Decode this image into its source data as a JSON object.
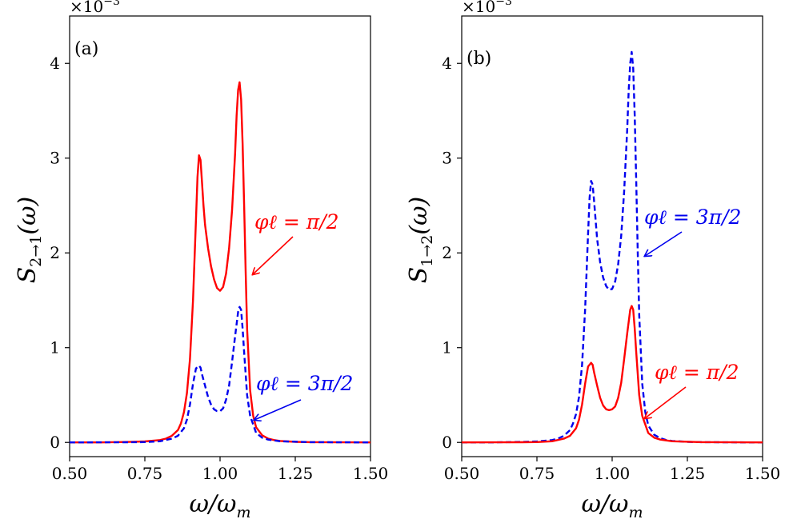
{
  "colors": {
    "red": "#ff0000",
    "blue": "#0000ee",
    "axis": "#000000"
  },
  "x_label": "ω/ω",
  "x_label_sub": "m",
  "chart_data": [
    {
      "type": "line",
      "panel": "(a)",
      "multiplier": "×10",
      "multiplier_exp": "−3",
      "ylabel": "S",
      "ylabel_sub": "2→1",
      "ylabel_tail": "(ω)",
      "xlim": [
        0.5,
        1.5
      ],
      "ylim": [
        -0.15,
        4.5
      ],
      "xticks": [
        0.5,
        0.75,
        1.0,
        1.25,
        1.5
      ],
      "xtick_labels": [
        "0.50",
        "0.75",
        "1.00",
        "1.25",
        "1.50"
      ],
      "yticks": [
        0,
        1,
        2,
        3,
        4
      ],
      "ytick_labels": [
        "0",
        "1",
        "2",
        "3",
        "4"
      ],
      "series": [
        {
          "name": "red-solid",
          "color": "#ff0000",
          "dash": "",
          "x": [
            0.5,
            0.6,
            0.7,
            0.75,
            0.8,
            0.82,
            0.84,
            0.86,
            0.87,
            0.88,
            0.89,
            0.9,
            0.91,
            0.92,
            0.925,
            0.93,
            0.935,
            0.94,
            0.945,
            0.95,
            0.96,
            0.97,
            0.98,
            0.99,
            1.0,
            1.01,
            1.02,
            1.03,
            1.04,
            1.05,
            1.055,
            1.06,
            1.065,
            1.07,
            1.075,
            1.08,
            1.085,
            1.09,
            1.1,
            1.11,
            1.12,
            1.14,
            1.16,
            1.18,
            1.2,
            1.25,
            1.3,
            1.4,
            1.5
          ],
          "y": [
            0.0,
            0.0,
            0.005,
            0.01,
            0.025,
            0.04,
            0.07,
            0.13,
            0.2,
            0.32,
            0.52,
            0.88,
            1.5,
            2.35,
            2.8,
            3.03,
            2.98,
            2.75,
            2.5,
            2.3,
            2.05,
            1.86,
            1.72,
            1.63,
            1.6,
            1.64,
            1.78,
            2.05,
            2.45,
            3.05,
            3.45,
            3.72,
            3.8,
            3.62,
            3.15,
            2.5,
            1.8,
            1.2,
            0.55,
            0.28,
            0.16,
            0.075,
            0.04,
            0.025,
            0.015,
            0.006,
            0.003,
            0.001,
            0.0
          ]
        },
        {
          "name": "blue-dashed",
          "color": "#0000ee",
          "dash": "7,4",
          "x": [
            0.5,
            0.6,
            0.7,
            0.75,
            0.8,
            0.84,
            0.86,
            0.88,
            0.89,
            0.9,
            0.91,
            0.92,
            0.93,
            0.935,
            0.94,
            0.95,
            0.96,
            0.97,
            0.98,
            0.99,
            1.0,
            1.01,
            1.02,
            1.03,
            1.04,
            1.05,
            1.06,
            1.065,
            1.07,
            1.075,
            1.08,
            1.085,
            1.09,
            1.1,
            1.12,
            1.14,
            1.16,
            1.2,
            1.3,
            1.5
          ],
          "y": [
            0.0,
            0.001,
            0.002,
            0.004,
            0.012,
            0.04,
            0.07,
            0.15,
            0.24,
            0.4,
            0.62,
            0.78,
            0.81,
            0.79,
            0.72,
            0.6,
            0.48,
            0.4,
            0.35,
            0.33,
            0.33,
            0.36,
            0.45,
            0.6,
            0.85,
            1.12,
            1.38,
            1.43,
            1.4,
            1.2,
            0.95,
            0.72,
            0.5,
            0.28,
            0.1,
            0.05,
            0.03,
            0.012,
            0.003,
            0.0
          ]
        }
      ],
      "annotations": [
        {
          "text": "φℓ = π/2",
          "color": "#ff0000"
        },
        {
          "text": "φℓ = 3π/2",
          "color": "#0000ee"
        }
      ]
    },
    {
      "type": "line",
      "panel": "(b)",
      "multiplier": "×10",
      "multiplier_exp": "−3",
      "ylabel": "S",
      "ylabel_sub": "1→2",
      "ylabel_tail": "(ω)",
      "xlim": [
        0.5,
        1.5
      ],
      "ylim": [
        -0.15,
        4.5
      ],
      "xticks": [
        0.5,
        0.75,
        1.0,
        1.25,
        1.5
      ],
      "xtick_labels": [
        "0.50",
        "0.75",
        "1.00",
        "1.25",
        "1.50"
      ],
      "yticks": [
        0,
        1,
        2,
        3,
        4
      ],
      "ytick_labels": [
        "0",
        "1",
        "2",
        "3",
        "4"
      ],
      "series": [
        {
          "name": "blue-dashed",
          "color": "#0000ee",
          "dash": "7,4",
          "x": [
            0.5,
            0.6,
            0.7,
            0.75,
            0.8,
            0.82,
            0.84,
            0.86,
            0.87,
            0.88,
            0.89,
            0.9,
            0.91,
            0.92,
            0.925,
            0.93,
            0.935,
            0.94,
            0.945,
            0.95,
            0.96,
            0.97,
            0.98,
            0.99,
            1.0,
            1.01,
            1.02,
            1.03,
            1.04,
            1.05,
            1.055,
            1.06,
            1.065,
            1.07,
            1.075,
            1.08,
            1.085,
            1.09,
            1.1,
            1.11,
            1.12,
            1.14,
            1.16,
            1.18,
            1.2,
            1.25,
            1.3,
            1.4,
            1.5
          ],
          "y": [
            0.0,
            0.0,
            0.005,
            0.01,
            0.025,
            0.04,
            0.07,
            0.13,
            0.2,
            0.3,
            0.48,
            0.82,
            1.4,
            2.2,
            2.58,
            2.76,
            2.72,
            2.55,
            2.35,
            2.15,
            1.9,
            1.74,
            1.65,
            1.61,
            1.62,
            1.7,
            1.88,
            2.18,
            2.65,
            3.3,
            3.72,
            4.0,
            4.12,
            3.95,
            3.45,
            2.75,
            2.0,
            1.35,
            0.62,
            0.32,
            0.18,
            0.08,
            0.045,
            0.025,
            0.015,
            0.006,
            0.003,
            0.001,
            0.0
          ]
        },
        {
          "name": "red-solid",
          "color": "#ff0000",
          "dash": "",
          "x": [
            0.5,
            0.6,
            0.7,
            0.75,
            0.8,
            0.84,
            0.86,
            0.88,
            0.89,
            0.9,
            0.91,
            0.92,
            0.93,
            0.935,
            0.94,
            0.95,
            0.96,
            0.97,
            0.98,
            0.99,
            1.0,
            1.01,
            1.02,
            1.03,
            1.04,
            1.05,
            1.06,
            1.065,
            1.07,
            1.075,
            1.08,
            1.085,
            1.09,
            1.1,
            1.12,
            1.14,
            1.16,
            1.2,
            1.3,
            1.5
          ],
          "y": [
            0.0,
            0.001,
            0.002,
            0.004,
            0.012,
            0.04,
            0.07,
            0.15,
            0.24,
            0.4,
            0.62,
            0.8,
            0.84,
            0.82,
            0.74,
            0.6,
            0.47,
            0.39,
            0.35,
            0.34,
            0.35,
            0.38,
            0.47,
            0.63,
            0.88,
            1.15,
            1.4,
            1.44,
            1.4,
            1.2,
            0.95,
            0.72,
            0.5,
            0.28,
            0.1,
            0.05,
            0.03,
            0.012,
            0.003,
            0.0
          ]
        }
      ],
      "annotations": [
        {
          "text": "φℓ = 3π/2",
          "color": "#0000ee"
        },
        {
          "text": "φℓ = π/2",
          "color": "#ff0000"
        }
      ]
    }
  ]
}
